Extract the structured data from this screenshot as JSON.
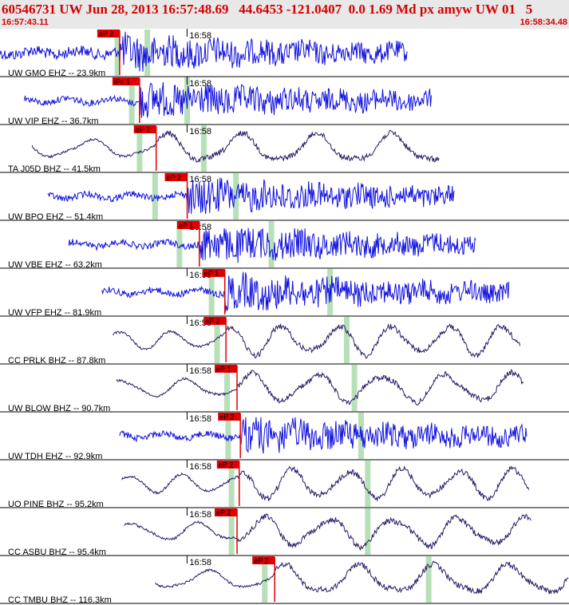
{
  "header": {
    "title": "60546731 UW Jun 28, 2013 16:57:48.69   44.6453 -121.0407  0.0 1.69 Md px amyw UW 01   5",
    "time_start": "16:57:43.11",
    "time_end": "16:58:34.48"
  },
  "colors": {
    "header_text": "#d40000",
    "header_bg": "#e8e8e8",
    "pick": "#e00000",
    "pick_label_bg": "#e00000",
    "trace_hf": "#1010e0",
    "trace_lf": "#2a1a66",
    "window": "#b8e0b8"
  },
  "minute_label": "16:58",
  "chart_data": {
    "type": "seismogram",
    "x_units": "seconds after 16:57:43.11",
    "xlim": [
      0,
      51.37
    ],
    "minute_mark_s": 16.89,
    "traces": [
      {
        "label": "UW GMO EHZ -- 23.9km",
        "station": "GMO",
        "channel": "EHZ",
        "net": "UW",
        "distance_km": 23.9,
        "pick_label": "eP 2",
        "pick_s": 10.8,
        "style": "hf",
        "start_s": 0.0,
        "end_s": 36.8,
        "windows_s": [
          10.6,
          13.3
        ]
      },
      {
        "label": "UW VIP EHZ -- 36.7km",
        "station": "VIP",
        "channel": "EHZ",
        "net": "UW",
        "distance_km": 36.7,
        "pick_label": "iPc 1",
        "pick_s": 12.6,
        "style": "hf",
        "start_s": 2.2,
        "end_s": 39.0,
        "windows_s": [
          11.9,
          16.9
        ]
      },
      {
        "label": "TA J05D BHZ -- 41.5km",
        "station": "J05D",
        "channel": "BHZ",
        "net": "TA",
        "distance_km": 41.5,
        "pick_label": "eP 2",
        "pick_s": 14.1,
        "style": "lf",
        "start_s": 2.9,
        "end_s": 39.7,
        "windows_s": [
          12.6,
          18.4
        ]
      },
      {
        "label": "UW BPO EHZ -- 51.4km",
        "station": "BPO",
        "channel": "EHZ",
        "net": "UW",
        "distance_km": 51.4,
        "pick_label": "eP 2",
        "pick_s": 16.9,
        "style": "hf",
        "start_s": 4.3,
        "end_s": 41.1,
        "windows_s": [
          14.0,
          21.3
        ]
      },
      {
        "label": "UW VBE EHZ -- 63.2km",
        "station": "VBE",
        "channel": "EHZ",
        "net": "UW",
        "distance_km": 63.2,
        "pick_label": "eP 1",
        "pick_s": 18.0,
        "style": "hf",
        "start_s": 6.2,
        "end_s": 43.0,
        "windows_s": [
          16.2,
          24.5
        ]
      },
      {
        "label": "UW VFP EHZ -- 81.9km",
        "station": "VFP",
        "channel": "EHZ",
        "net": "UW",
        "distance_km": 81.9,
        "pick_label": "eP 1",
        "pick_s": 20.3,
        "style": "hf",
        "start_s": 9.2,
        "end_s": 46.0,
        "windows_s": [
          19.1,
          29.8
        ]
      },
      {
        "label": "CC PRLK BHZ -- 87.8km",
        "station": "PRLK",
        "channel": "BHZ",
        "net": "CC",
        "distance_km": 87.8,
        "pick_label": "eP 2",
        "pick_s": 20.4,
        "style": "lf",
        "start_s": 10.2,
        "end_s": 47.0,
        "windows_s": [
          19.6,
          31.3
        ]
      },
      {
        "label": "UW BLOW BHZ -- 90.7km",
        "station": "BLOW",
        "channel": "BHZ",
        "net": "UW",
        "distance_km": 90.7,
        "pick_label": "eP 1",
        "pick_s": 21.4,
        "style": "lf",
        "start_s": 10.5,
        "end_s": 47.3,
        "windows_s": [
          20.5,
          32.0
        ]
      },
      {
        "label": "UW TDH EHZ -- 92.9km",
        "station": "TDH",
        "channel": "EHZ",
        "net": "UW",
        "distance_km": 92.9,
        "pick_label": "eP 2",
        "pick_s": 21.7,
        "style": "hf",
        "start_s": 10.8,
        "end_s": 47.6,
        "windows_s": [
          20.6,
          32.6
        ]
      },
      {
        "label": "UO PINE BHZ -- 95.2km",
        "station": "PINE",
        "channel": "BHZ",
        "net": "UO",
        "distance_km": 95.2,
        "pick_label": "eP 2",
        "pick_s": 21.6,
        "style": "lf",
        "start_s": 11.0,
        "end_s": 47.8,
        "windows_s": [
          20.9,
          33.2
        ]
      },
      {
        "label": "CC ASBU BHZ -- 95.4km",
        "station": "ASBU",
        "channel": "BHZ",
        "net": "CC",
        "distance_km": 95.4,
        "pick_label": "eP 2",
        "pick_s": 21.4,
        "style": "lf",
        "start_s": 11.2,
        "end_s": 48.0,
        "windows_s": [
          20.9,
          33.2
        ]
      },
      {
        "label": "CC TMBU BHZ -- 116.3km",
        "station": "TMBU",
        "channel": "BHZ",
        "net": "CC",
        "distance_km": 116.3,
        "pick_label": "eP 2",
        "pick_s": 24.8,
        "style": "lf",
        "start_s": 14.0,
        "end_s": 51.37,
        "windows_s": [
          23.9,
          38.7
        ]
      }
    ]
  }
}
